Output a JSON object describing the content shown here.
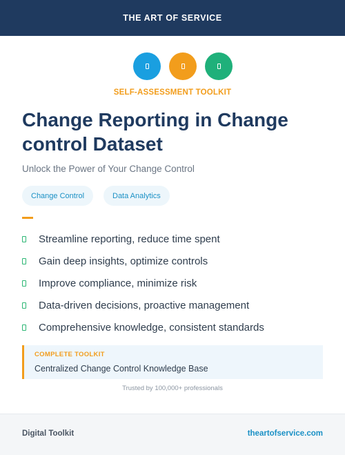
{
  "header": {
    "brand": "THE ART OF SERVICE"
  },
  "icons": [
    {
      "name": "document-icon",
      "color": "#1a9fe0"
    },
    {
      "name": "document-icon",
      "color": "#f29d1c"
    },
    {
      "name": "document-icon",
      "color": "#1fb07a"
    }
  ],
  "eyebrow": "SELF-ASSESSMENT TOOLKIT",
  "title": "Change Reporting in Change control Dataset",
  "subtitle": "Unlock the Power of Your Change Control",
  "tags": [
    "Change Control",
    "Data Analytics"
  ],
  "features": [
    "Streamline reporting, reduce time spent",
    "Gain deep insights, optimize controls",
    "Improve compliance, minimize risk",
    "Data-driven decisions, proactive management",
    "Comprehensive knowledge, consistent standards"
  ],
  "callout": {
    "label": "COMPLETE TOOLKIT",
    "text": "Centralized Change Control Knowledge Base"
  },
  "trust": "Trusted by 100,000+ professionals",
  "footer": {
    "left": "Digital Toolkit",
    "right": "theartofservice.com"
  },
  "colors": {
    "navy": "#1f3a5f",
    "accent_orange": "#f29d1c",
    "accent_blue": "#1a90c5",
    "check_green": "#2bb673"
  }
}
